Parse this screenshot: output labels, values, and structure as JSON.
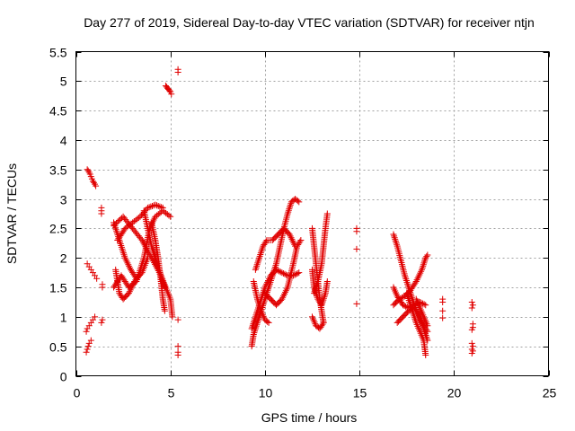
{
  "chart_data": {
    "type": "scatter",
    "title": "Day 277 of 2019, Sidereal Day-to-day VTEC variation (SDTVAR) for receiver ntjn",
    "xlabel": "GPS time / hours",
    "ylabel": "SDTVAR / TECUs",
    "xlim": [
      0,
      25
    ],
    "ylim": [
      0,
      5.5
    ],
    "xticks": [
      "0",
      "5",
      "10",
      "15",
      "20",
      "25"
    ],
    "yticks": [
      "0",
      "0.5",
      "1",
      "1.5",
      "2",
      "2.5",
      "3",
      "3.5",
      "4",
      "4.5",
      "5",
      "5.5"
    ],
    "grid": true,
    "marker": "+",
    "color": "#e00000",
    "series": [
      {
        "name": "SDTVAR",
        "points": [
          [
            0.6,
            3.5
          ],
          [
            0.65,
            3.48
          ],
          [
            0.7,
            3.45
          ],
          [
            0.75,
            3.42
          ],
          [
            0.8,
            3.38
          ],
          [
            0.85,
            3.34
          ],
          [
            0.9,
            3.3
          ],
          [
            0.95,
            3.28
          ],
          [
            1.0,
            3.25
          ],
          [
            1.05,
            3.22
          ],
          [
            0.6,
            1.9
          ],
          [
            0.7,
            1.85
          ],
          [
            0.8,
            1.8
          ],
          [
            0.9,
            1.75
          ],
          [
            1.0,
            1.7
          ],
          [
            1.1,
            1.65
          ],
          [
            0.55,
            0.75
          ],
          [
            0.6,
            0.8
          ],
          [
            0.7,
            0.85
          ],
          [
            0.8,
            0.9
          ],
          [
            0.9,
            0.95
          ],
          [
            1.0,
            1.0
          ],
          [
            0.55,
            0.4
          ],
          [
            0.6,
            0.45
          ],
          [
            0.65,
            0.5
          ],
          [
            0.7,
            0.55
          ],
          [
            0.8,
            0.6
          ],
          [
            1.35,
            2.85
          ],
          [
            1.35,
            2.8
          ],
          [
            1.35,
            2.75
          ],
          [
            1.4,
            1.55
          ],
          [
            1.4,
            1.5
          ],
          [
            1.35,
            0.9
          ],
          [
            1.4,
            0.95
          ],
          [
            4.75,
            4.92
          ],
          [
            4.8,
            4.9
          ],
          [
            4.85,
            4.88
          ],
          [
            4.9,
            4.86
          ],
          [
            4.95,
            4.84
          ],
          [
            5.0,
            4.82
          ],
          [
            5.05,
            4.78
          ],
          [
            5.4,
            5.2
          ],
          [
            5.4,
            5.15
          ],
          [
            5.4,
            0.95
          ],
          [
            5.4,
            0.5
          ],
          [
            5.4,
            0.4
          ],
          [
            5.4,
            0.35
          ],
          [
            14.85,
            2.5
          ],
          [
            14.85,
            2.45
          ],
          [
            14.85,
            2.15
          ],
          [
            14.85,
            1.22
          ],
          [
            19.4,
            1.3
          ],
          [
            19.4,
            1.25
          ],
          [
            19.4,
            1.1
          ],
          [
            19.4,
            0.98
          ],
          [
            20.95,
            1.25
          ],
          [
            21.0,
            1.2
          ],
          [
            20.95,
            1.15
          ],
          [
            21.0,
            0.88
          ],
          [
            21.0,
            0.82
          ],
          [
            20.95,
            0.78
          ],
          [
            20.95,
            0.55
          ],
          [
            21.0,
            0.5
          ],
          [
            20.95,
            0.45
          ],
          [
            21.0,
            0.42
          ],
          [
            20.95,
            0.38
          ]
        ],
        "segments": [
          [
            [
              2.0,
              2.55
            ],
            [
              2.5,
              2.7
            ],
            [
              3.0,
              2.5
            ],
            [
              3.5,
              2.3
            ],
            [
              4.0,
              2.0
            ],
            [
              4.5,
              1.7
            ],
            [
              5.0,
              1.3
            ],
            [
              5.1,
              1.0
            ]
          ],
          [
            [
              2.0,
              1.5
            ],
            [
              2.4,
              1.7
            ],
            [
              2.8,
              1.5
            ],
            [
              3.2,
              1.6
            ],
            [
              3.6,
              2.0
            ],
            [
              3.9,
              2.5
            ],
            [
              4.2,
              2.7
            ],
            [
              4.6,
              2.8
            ],
            [
              5.0,
              2.7
            ]
          ],
          [
            [
              2.2,
              2.3
            ],
            [
              2.6,
              2.5
            ],
            [
              3.0,
              2.6
            ],
            [
              3.4,
              2.7
            ],
            [
              3.8,
              2.85
            ],
            [
              4.2,
              2.9
            ],
            [
              4.6,
              2.85
            ]
          ],
          [
            [
              2.0,
              2.6
            ],
            [
              2.3,
              2.3
            ],
            [
              2.6,
              2.0
            ],
            [
              2.9,
              1.8
            ],
            [
              3.2,
              1.65
            ],
            [
              3.5,
              1.75
            ],
            [
              3.8,
              2.0
            ]
          ],
          [
            [
              2.1,
              1.8
            ],
            [
              2.3,
              1.4
            ],
            [
              2.5,
              1.3
            ],
            [
              2.8,
              1.4
            ],
            [
              3.1,
              1.6
            ],
            [
              3.3,
              1.7
            ]
          ],
          [
            [
              4.0,
              2.6
            ],
            [
              4.2,
              2.3
            ],
            [
              4.35,
              2.0
            ],
            [
              4.5,
              1.6
            ],
            [
              4.6,
              1.3
            ],
            [
              4.7,
              1.1
            ]
          ],
          [
            [
              3.6,
              2.8
            ],
            [
              3.8,
              2.5
            ],
            [
              4.0,
              2.2
            ],
            [
              4.3,
              1.9
            ],
            [
              4.5,
              1.7
            ],
            [
              4.7,
              1.5
            ]
          ],
          [
            [
              9.3,
              0.5
            ],
            [
              9.4,
              0.7
            ],
            [
              9.6,
              0.9
            ],
            [
              9.8,
              1.1
            ],
            [
              10.0,
              1.3
            ],
            [
              10.2,
              1.5
            ],
            [
              10.4,
              1.7
            ],
            [
              10.6,
              1.9
            ],
            [
              10.8,
              2.2
            ],
            [
              11.0,
              2.5
            ],
            [
              11.2,
              2.75
            ],
            [
              11.4,
              2.95
            ],
            [
              11.6,
              3.0
            ],
            [
              11.8,
              2.95
            ]
          ],
          [
            [
              9.3,
              0.8
            ],
            [
              9.5,
              1.0
            ],
            [
              9.8,
              1.3
            ],
            [
              10.0,
              1.5
            ],
            [
              10.3,
              1.7
            ],
            [
              10.6,
              1.8
            ],
            [
              10.9,
              1.75
            ],
            [
              11.2,
              1.7
            ],
            [
              11.5,
              1.7
            ],
            [
              11.8,
              1.75
            ]
          ],
          [
            [
              9.5,
              1.8
            ],
            [
              9.7,
              2.0
            ],
            [
              9.9,
              2.2
            ],
            [
              10.1,
              2.3
            ],
            [
              10.4,
              2.3
            ],
            [
              10.7,
              2.4
            ],
            [
              11.0,
              2.5
            ],
            [
              11.3,
              2.4
            ],
            [
              11.6,
              2.2
            ]
          ],
          [
            [
              10.0,
              1.4
            ],
            [
              10.3,
              1.3
            ],
            [
              10.6,
              1.2
            ],
            [
              10.9,
              1.3
            ],
            [
              11.2,
              1.5
            ],
            [
              11.5,
              1.9
            ],
            [
              11.7,
              2.2
            ],
            [
              11.9,
              2.3
            ]
          ],
          [
            [
              9.4,
              1.6
            ],
            [
              9.6,
              1.3
            ],
            [
              9.8,
              1.1
            ],
            [
              10.0,
              0.95
            ],
            [
              10.2,
              0.9
            ]
          ],
          [
            [
              12.5,
              2.5
            ],
            [
              12.6,
              2.2
            ],
            [
              12.7,
              1.9
            ],
            [
              12.8,
              1.6
            ],
            [
              12.9,
              1.3
            ],
            [
              13.0,
              1.1
            ],
            [
              13.1,
              0.9
            ]
          ],
          [
            [
              12.6,
              1.4
            ],
            [
              12.8,
              1.6
            ],
            [
              13.0,
              1.9
            ],
            [
              13.1,
              2.2
            ],
            [
              13.2,
              2.5
            ],
            [
              13.3,
              2.75
            ]
          ],
          [
            [
              12.5,
              1.8
            ],
            [
              12.6,
              1.5
            ],
            [
              12.8,
              1.3
            ],
            [
              13.0,
              1.2
            ],
            [
              13.2,
              1.4
            ],
            [
              13.3,
              1.6
            ]
          ],
          [
            [
              12.5,
              1.0
            ],
            [
              12.7,
              0.85
            ],
            [
              12.9,
              0.8
            ],
            [
              13.1,
              0.9
            ]
          ],
          [
            [
              16.8,
              2.4
            ],
            [
              17.0,
              2.2
            ],
            [
              17.2,
              1.95
            ],
            [
              17.4,
              1.7
            ],
            [
              17.6,
              1.5
            ],
            [
              17.8,
              1.3
            ],
            [
              18.0,
              1.1
            ],
            [
              18.2,
              0.95
            ],
            [
              18.4,
              0.85
            ],
            [
              18.6,
              0.75
            ]
          ],
          [
            [
              16.8,
              1.5
            ],
            [
              17.0,
              1.35
            ],
            [
              17.3,
              1.2
            ],
            [
              17.6,
              1.15
            ],
            [
              17.9,
              1.2
            ],
            [
              18.2,
              1.25
            ],
            [
              18.5,
              1.2
            ]
          ],
          [
            [
              16.8,
              1.2
            ],
            [
              17.1,
              1.3
            ],
            [
              17.4,
              1.35
            ],
            [
              17.7,
              1.45
            ],
            [
              18.0,
              1.6
            ],
            [
              18.3,
              1.8
            ],
            [
              18.5,
              2.0
            ],
            [
              18.6,
              2.05
            ]
          ],
          [
            [
              17.0,
              0.9
            ],
            [
              17.3,
              1.0
            ],
            [
              17.6,
              1.1
            ],
            [
              17.9,
              1.15
            ],
            [
              18.2,
              1.0
            ],
            [
              18.4,
              0.8
            ],
            [
              18.6,
              0.6
            ]
          ],
          [
            [
              17.5,
              1.4
            ],
            [
              17.8,
              1.1
            ],
            [
              18.0,
              0.9
            ],
            [
              18.2,
              0.75
            ],
            [
              18.4,
              0.6
            ],
            [
              18.5,
              0.35
            ]
          ],
          [
            [
              18.0,
              1.3
            ],
            [
              18.2,
              1.15
            ],
            [
              18.4,
              1.0
            ],
            [
              18.6,
              0.85
            ]
          ]
        ]
      }
    ]
  }
}
